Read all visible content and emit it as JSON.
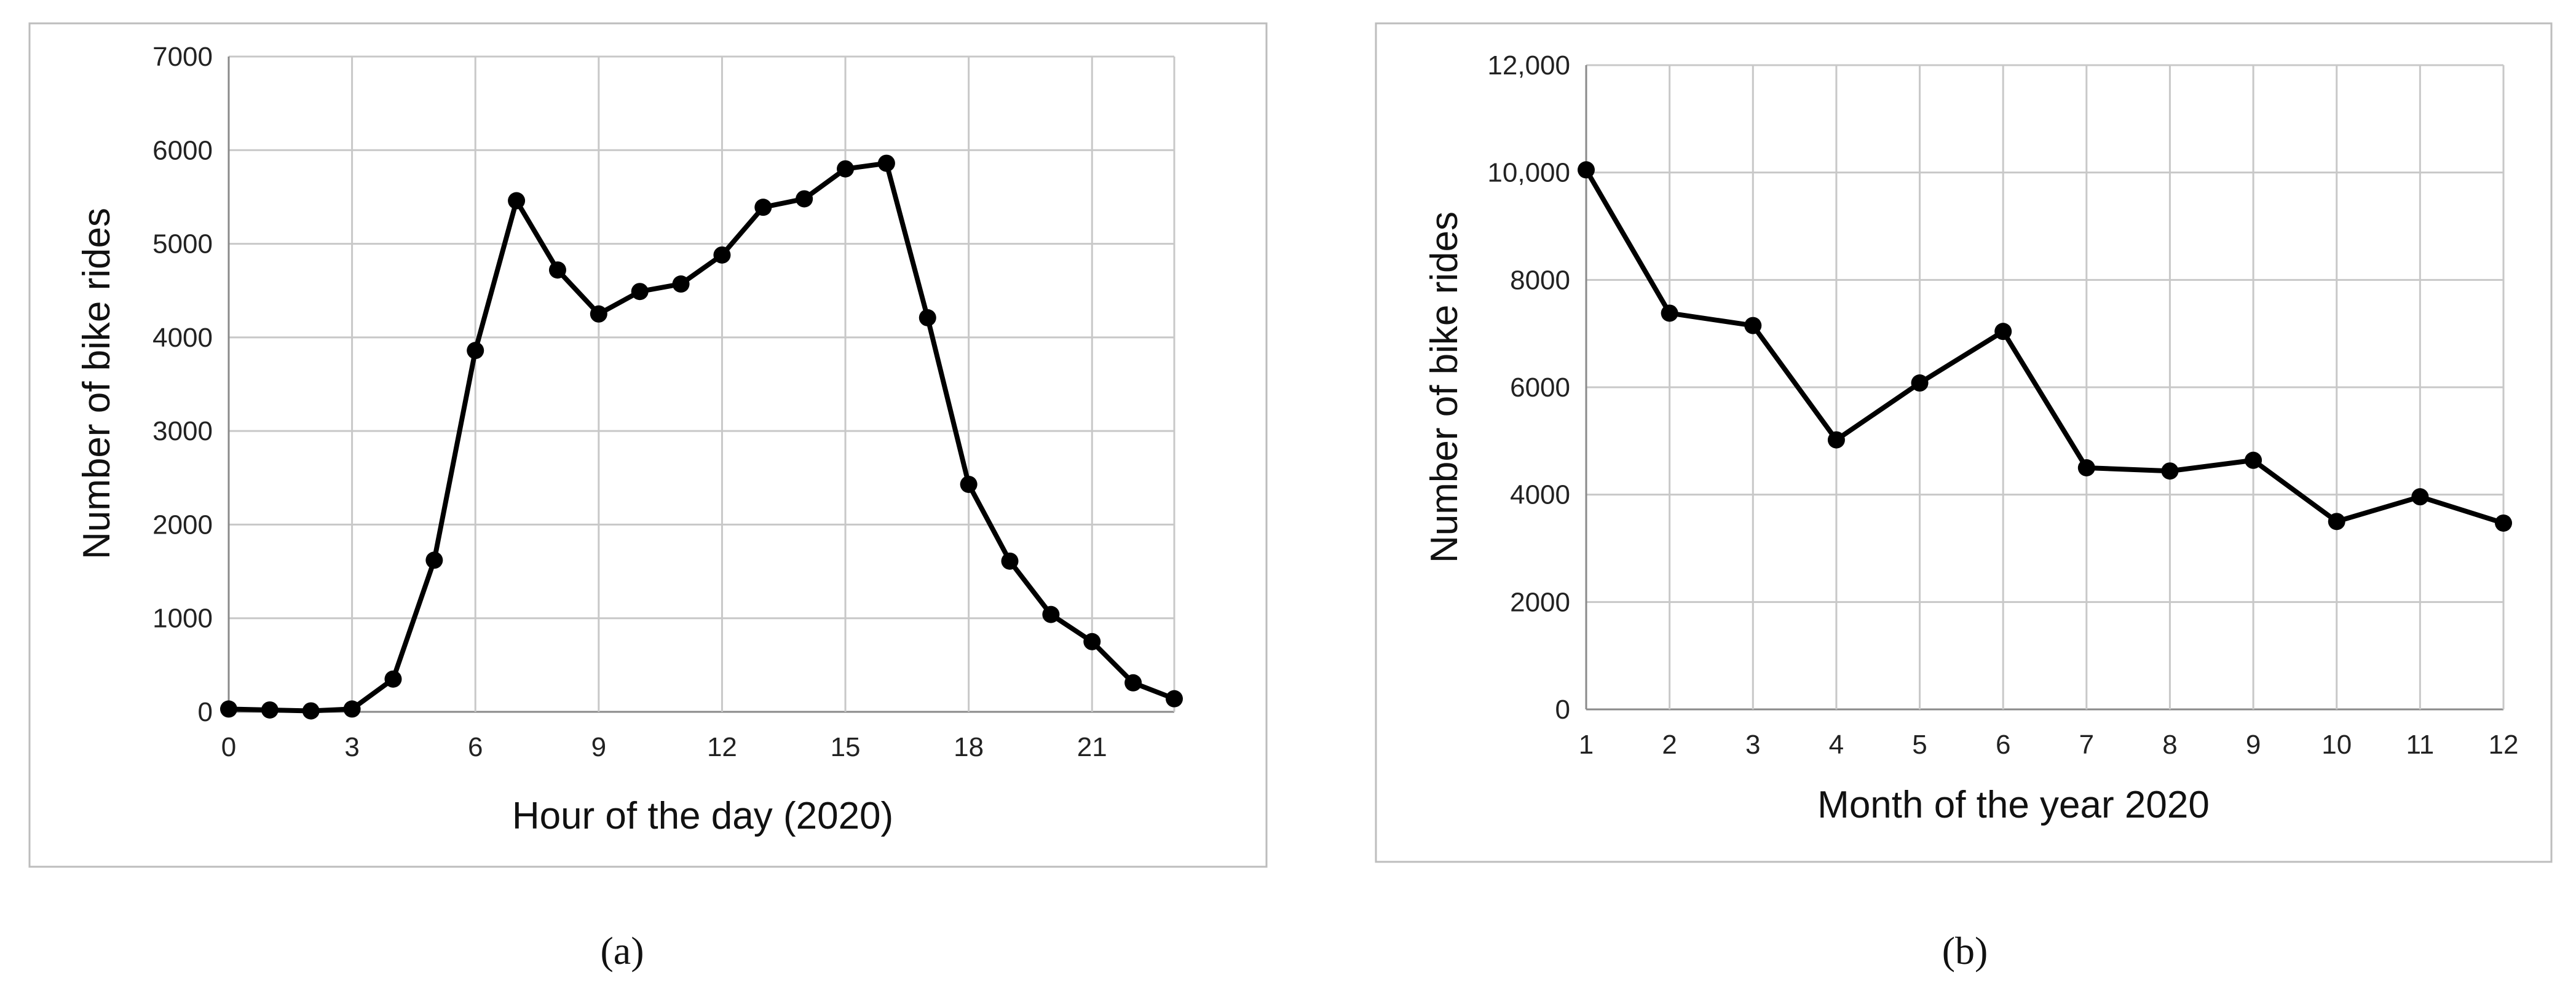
{
  "panels": [
    {
      "label": "(a)",
      "chart_data": {
        "type": "line",
        "title": "",
        "xlabel": "Hour of the day (2020)",
        "ylabel": "Number of bike rides",
        "x": [
          0,
          1,
          2,
          3,
          4,
          5,
          6,
          7,
          8,
          9,
          10,
          11,
          12,
          13,
          14,
          15,
          16,
          17,
          18,
          19,
          20,
          21,
          22,
          23
        ],
        "series": [
          {
            "values": [
              30,
              20,
              10,
              30,
              350,
              1620,
              3860,
              5460,
              4720,
              4250,
              4490,
              4570,
              4880,
              5390,
              5480,
              5800,
              5860,
              4210,
              2430,
              1610,
              1040,
              750,
              310,
              140
            ]
          }
        ],
        "xlim": [
          0,
          23
        ],
        "ylim": [
          0,
          7000
        ],
        "x_ticks": [
          0,
          3,
          6,
          9,
          12,
          15,
          18,
          21
        ],
        "x_tick_labels": [
          "0",
          "3",
          "6",
          "9",
          "12",
          "15",
          "18",
          "21"
        ],
        "y_ticks": [
          0,
          1000,
          2000,
          3000,
          4000,
          5000,
          6000,
          7000
        ],
        "y_tick_labels": [
          "0",
          "1000",
          "2000",
          "3000",
          "4000",
          "5000",
          "6000",
          "7000"
        ],
        "grid": true,
        "legend": false,
        "color": "#000000"
      }
    },
    {
      "label": "(b)",
      "chart_data": {
        "type": "line",
        "title": "",
        "xlabel": "Month of the year 2020",
        "ylabel": "Number of bike rides",
        "x": [
          1,
          2,
          3,
          4,
          5,
          6,
          7,
          8,
          9,
          10,
          11,
          12
        ],
        "series": [
          {
            "values": [
              10050,
              7380,
              7150,
              5020,
              6080,
              7040,
              4500,
              4440,
              4640,
              3500,
              3960,
              3470
            ]
          }
        ],
        "xlim": [
          1,
          12
        ],
        "ylim": [
          0,
          12000
        ],
        "x_ticks": [
          1,
          2,
          3,
          4,
          5,
          6,
          7,
          8,
          9,
          10,
          11,
          12
        ],
        "x_tick_labels": [
          "1",
          "2",
          "3",
          "4",
          "5",
          "6",
          "7",
          "8",
          "9",
          "10",
          "11",
          "12"
        ],
        "y_ticks": [
          0,
          2000,
          4000,
          6000,
          8000,
          10000,
          12000
        ],
        "y_tick_labels": [
          "0",
          "2000",
          "4000",
          "6000",
          "8000",
          "10,000",
          "12,000"
        ],
        "grid": true,
        "legend": false,
        "color": "#000000"
      }
    }
  ]
}
